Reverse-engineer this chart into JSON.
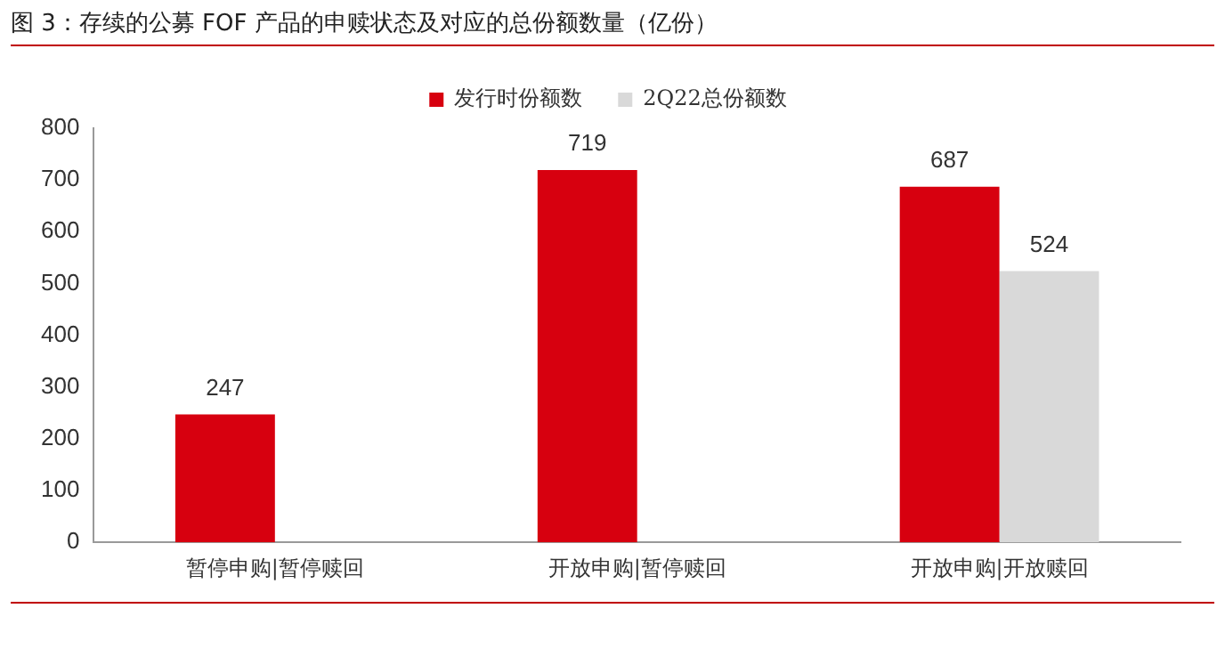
{
  "chart_data": {
    "type": "bar",
    "title": "图 3：存续的公募 FOF 产品的申赎状态及对应的总份额数量（亿份）",
    "categories": [
      "暂停申购|暂停赎回",
      "开放申购|暂停赎回",
      "开放申购|开放赎回"
    ],
    "series": [
      {
        "name": "发行时份额数",
        "color": "#d7000f",
        "values": [
          247,
          719,
          687
        ]
      },
      {
        "name": "2Q22总份额数",
        "color": "#d9d9d9",
        "values": [
          null,
          null,
          524
        ]
      }
    ],
    "ylim": [
      0,
      800
    ],
    "yticks": [
      0,
      100,
      200,
      300,
      400,
      500,
      600,
      700,
      800
    ],
    "grid": false,
    "legend": "top",
    "data_labels": true
  }
}
